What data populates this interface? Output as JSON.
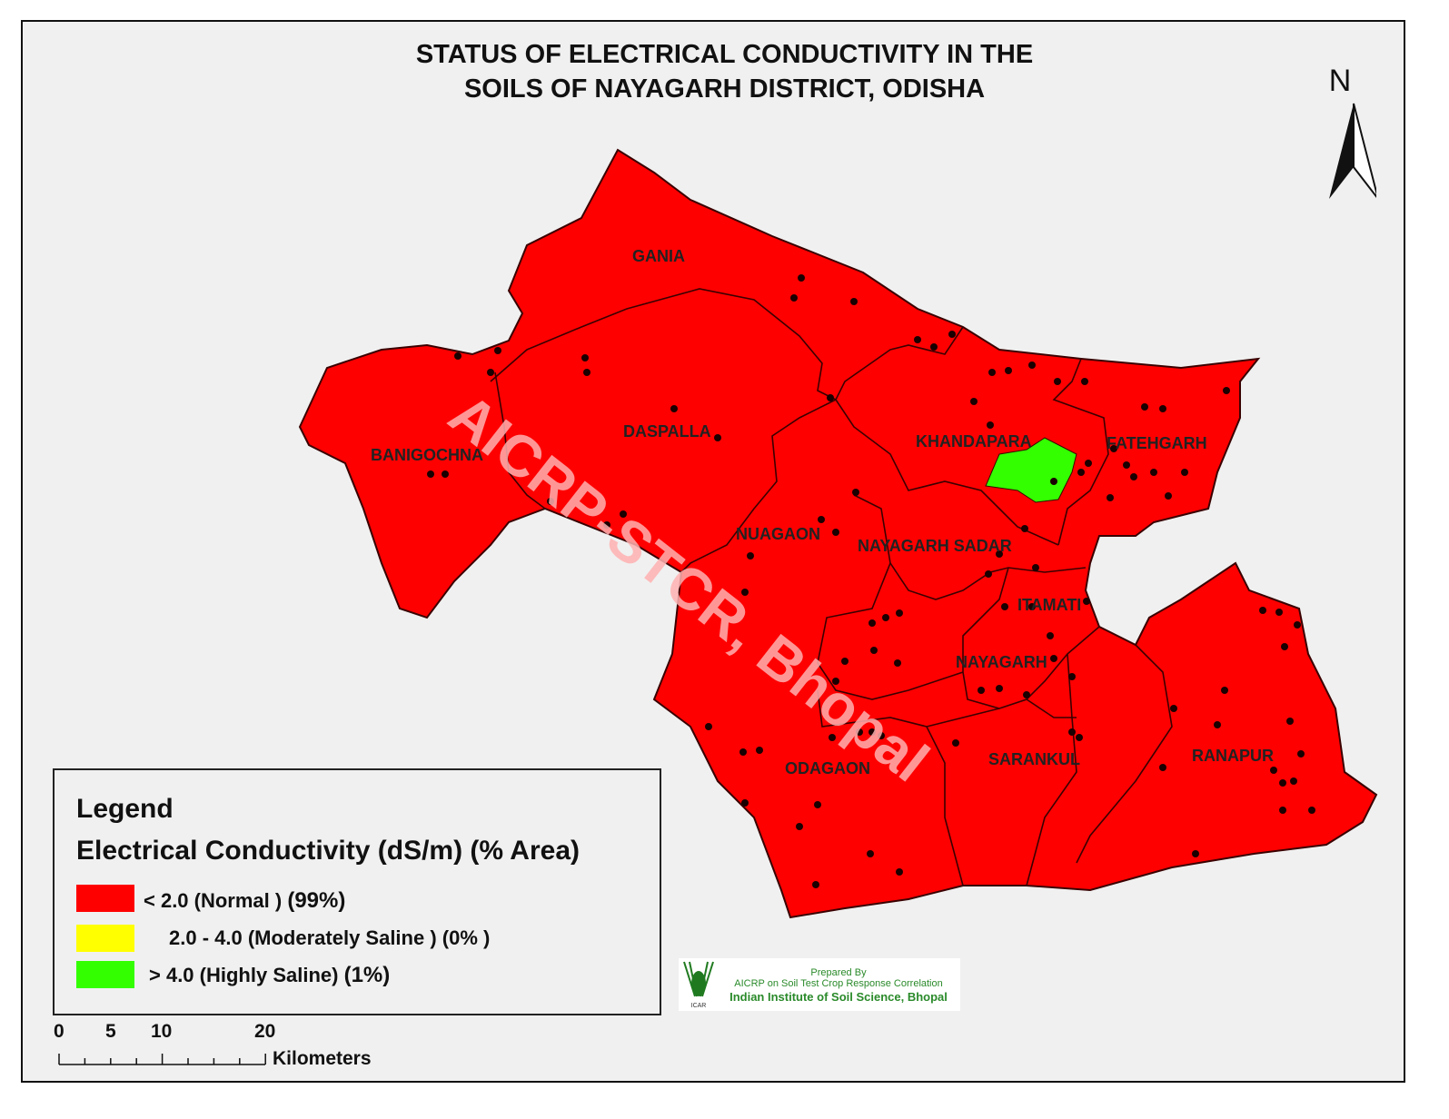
{
  "title": {
    "line1": "STATUS OF ELECTRICAL CONDUCTIVITY    IN THE",
    "line2": "SOILS OF NAYAGARH DISTRICT, ODISHA"
  },
  "north_arrow": {
    "label": "N"
  },
  "watermark": "AICRP-STCR, Bhopal",
  "blocks": [
    "GANIA",
    "DASPALLA",
    "BANIGOCHNA",
    "KHANDAPARA",
    "FATEHGARH",
    "NUAGAON",
    "NAYAGARH SADAR",
    "ITAMATI",
    "NAYAGARH",
    "ODAGAON",
    "SARANKUL",
    "RANAPUR"
  ],
  "colors": {
    "normal": "#ff0000",
    "moderate": "#ffff00",
    "high": "#33ff00",
    "boundary": "#3a0000",
    "sample_point": "#1a0000"
  },
  "legend": {
    "heading": "Legend",
    "subheading": "Electrical Conductivity  (dS/m) (% Area)",
    "classes": [
      {
        "range": "<  2.0  (Normal )",
        "pct": "(99%)",
        "color": "#ff0000"
      },
      {
        "range": "2.0 - 4.0  (Moderately Saline )",
        "pct": "(0% )",
        "color": "#ffff00"
      },
      {
        "range": "> 4.0  (Highly Saline)",
        "pct": "(1%)",
        "color": "#33ff00"
      }
    ]
  },
  "scale_bar": {
    "ticks": [
      "0",
      "5",
      "10",
      "20"
    ],
    "unit": "Kilometers"
  },
  "credit": {
    "line1": "Prepared By",
    "line2": "AICRP on Soil Test Crop Response Correlation",
    "line3": "Indian Institute of Soil Science, Bhopal",
    "logo_text": "ICAR"
  }
}
